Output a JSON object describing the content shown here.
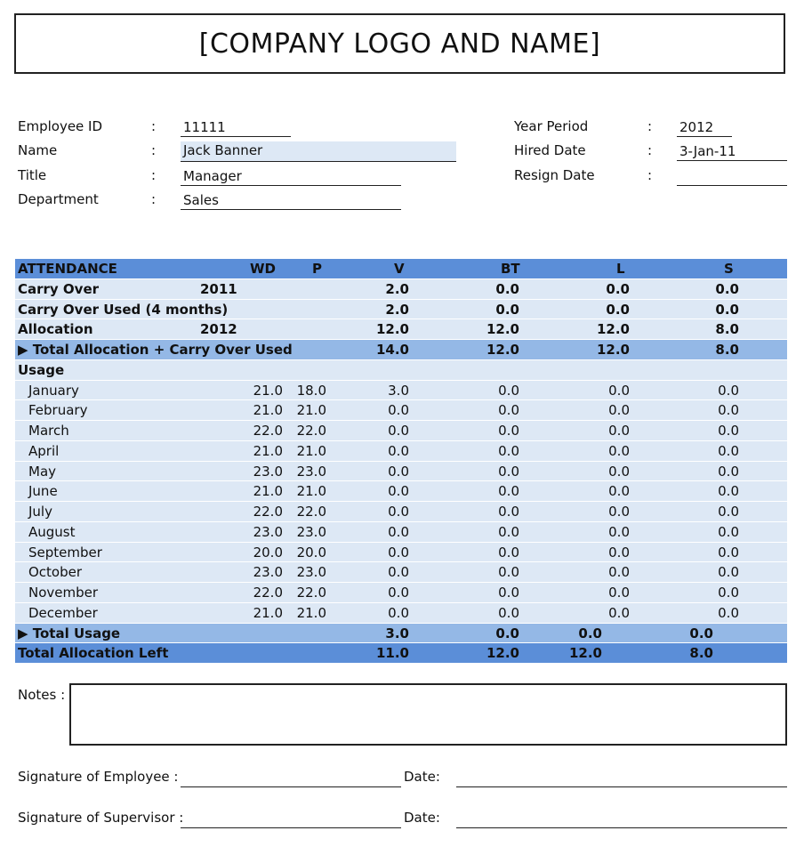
{
  "logo": "[COMPANY LOGO AND NAME]",
  "employee": {
    "id_label": "Employee ID",
    "id": "11111",
    "name_label": "Name",
    "name": "Jack Banner",
    "title_label": "Title",
    "title": "Manager",
    "dept_label": "Department",
    "dept": "Sales",
    "year_label": "Year Period",
    "year": "2012",
    "hired_label": "Hired Date",
    "hired": "3-Jan-11",
    "resign_label": "Resign Date",
    "resign": "",
    "colon": ":"
  },
  "table": {
    "headers": [
      "ATTENDANCE",
      "WD",
      "P",
      "V",
      "BT",
      "L",
      "S"
    ],
    "rows": [
      {
        "style": "light",
        "bold": true,
        "label": "Carry Over",
        "year": "2011",
        "wd": "",
        "p": "",
        "v": "2.0",
        "bt": "0.0",
        "l": "0.0",
        "s": "0.0"
      },
      {
        "style": "light",
        "bold": true,
        "label": "Carry Over Used (4 months)",
        "year": "",
        "wd": "",
        "p": "",
        "v": "2.0",
        "bt": "0.0",
        "l": "0.0",
        "s": "0.0"
      },
      {
        "style": "light",
        "bold": true,
        "label": "Allocation",
        "year": "2012",
        "wd": "",
        "p": "",
        "v": "12.0",
        "bt": "12.0",
        "l": "12.0",
        "s": "8.0"
      },
      {
        "style": "mid",
        "bold": true,
        "label": "▶ Total Allocation + Carry Over Used",
        "year": "",
        "wd": "",
        "p": "",
        "v": "14.0",
        "bt": "12.0",
        "l": "12.0",
        "s": "8.0"
      },
      {
        "style": "light",
        "bold": true,
        "label": "Usage",
        "year": "",
        "wd": "",
        "p": "",
        "v": "",
        "bt": "",
        "l": "",
        "s": ""
      },
      {
        "style": "light",
        "indent": true,
        "label": "January",
        "year": "",
        "wd": "21.0",
        "p": "18.0",
        "v": "3.0",
        "bt": "0.0",
        "l": "0.0",
        "s": "0.0"
      },
      {
        "style": "light",
        "indent": true,
        "label": "February",
        "year": "",
        "wd": "21.0",
        "p": "21.0",
        "v": "0.0",
        "bt": "0.0",
        "l": "0.0",
        "s": "0.0"
      },
      {
        "style": "light",
        "indent": true,
        "label": "March",
        "year": "",
        "wd": "22.0",
        "p": "22.0",
        "v": "0.0",
        "bt": "0.0",
        "l": "0.0",
        "s": "0.0"
      },
      {
        "style": "light",
        "indent": true,
        "label": "April",
        "year": "",
        "wd": "21.0",
        "p": "21.0",
        "v": "0.0",
        "bt": "0.0",
        "l": "0.0",
        "s": "0.0"
      },
      {
        "style": "light",
        "indent": true,
        "label": "May",
        "year": "",
        "wd": "23.0",
        "p": "23.0",
        "v": "0.0",
        "bt": "0.0",
        "l": "0.0",
        "s": "0.0"
      },
      {
        "style": "light",
        "indent": true,
        "label": "June",
        "year": "",
        "wd": "21.0",
        "p": "21.0",
        "v": "0.0",
        "bt": "0.0",
        "l": "0.0",
        "s": "0.0"
      },
      {
        "style": "light",
        "indent": true,
        "label": "July",
        "year": "",
        "wd": "22.0",
        "p": "22.0",
        "v": "0.0",
        "bt": "0.0",
        "l": "0.0",
        "s": "0.0"
      },
      {
        "style": "light",
        "indent": true,
        "label": "August",
        "year": "",
        "wd": "23.0",
        "p": "23.0",
        "v": "0.0",
        "bt": "0.0",
        "l": "0.0",
        "s": "0.0"
      },
      {
        "style": "light",
        "indent": true,
        "label": "September",
        "year": "",
        "wd": "20.0",
        "p": "20.0",
        "v": "0.0",
        "bt": "0.0",
        "l": "0.0",
        "s": "0.0"
      },
      {
        "style": "light",
        "indent": true,
        "label": "October",
        "year": "",
        "wd": "23.0",
        "p": "23.0",
        "v": "0.0",
        "bt": "0.0",
        "l": "0.0",
        "s": "0.0"
      },
      {
        "style": "light",
        "indent": true,
        "label": "November",
        "year": "",
        "wd": "22.0",
        "p": "22.0",
        "v": "0.0",
        "bt": "0.0",
        "l": "0.0",
        "s": "0.0"
      },
      {
        "style": "light",
        "indent": true,
        "label": "December",
        "year": "",
        "wd": "21.0",
        "p": "21.0",
        "v": "0.0",
        "bt": "0.0",
        "l": "0.0",
        "s": "0.0"
      },
      {
        "style": "mid",
        "bold": true,
        "shift": true,
        "label": "▶ Total Usage",
        "year": "",
        "wd": "",
        "p": "",
        "v": "3.0",
        "bt": "0.0",
        "l": "0.0",
        "s": "0.0"
      },
      {
        "style": "dark",
        "bold": true,
        "shift": true,
        "label": "Total Allocation Left",
        "year": "",
        "wd": "",
        "p": "",
        "v": "11.0",
        "bt": "12.0",
        "l": "12.0",
        "s": "8.0"
      }
    ]
  },
  "notes_label": "Notes :",
  "signature": {
    "employee": "Signature of Employee :",
    "supervisor": "Signature of Supervisor :",
    "date": "Date:"
  }
}
